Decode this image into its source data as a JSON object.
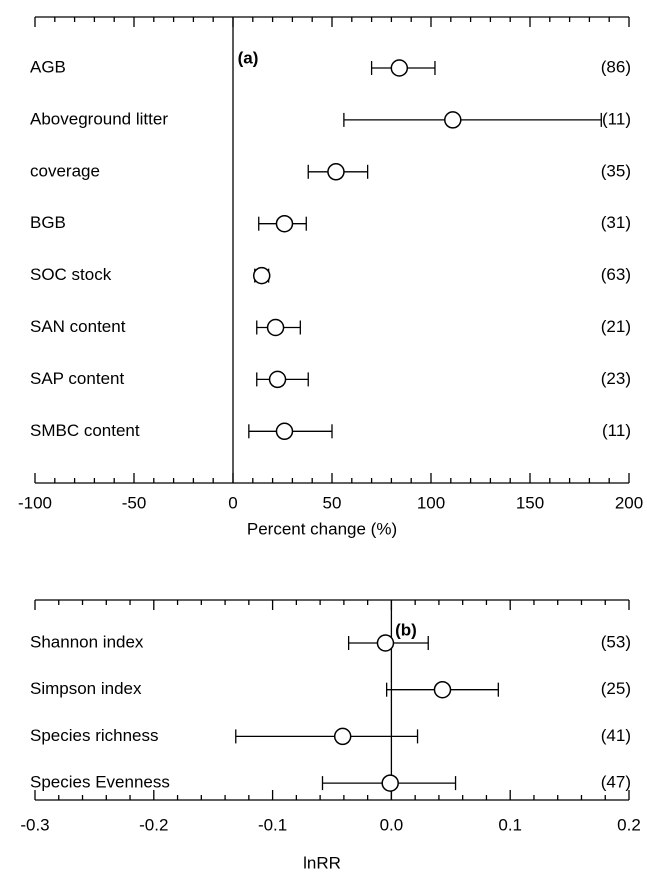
{
  "chart_data": [
    {
      "type": "forest",
      "panel_label": "(a)",
      "xlabel": "Percent change (%)",
      "xlim": [
        -100,
        200
      ],
      "xticks": [
        -100,
        -50,
        0,
        50,
        100,
        150,
        200
      ],
      "categories": [
        "AGB",
        "Aboveground litter",
        "coverage",
        "BGB",
        "SOC stock",
        "SAN content",
        "SAP content",
        "SMBC content"
      ],
      "values": [
        84,
        111,
        52,
        26,
        14.5,
        21.5,
        22.5,
        26
      ],
      "lower": [
        70,
        56,
        38,
        13,
        11,
        12,
        12,
        8
      ],
      "upper": [
        102,
        186,
        68,
        37,
        18,
        34,
        38,
        50
      ],
      "counts": [
        "(86)",
        "(11)",
        "(35)",
        "(31)",
        "(63)",
        "(21)",
        "(23)",
        "(11)"
      ]
    },
    {
      "type": "forest",
      "panel_label": "(b)",
      "xlabel": "lnRR",
      "xlim": [
        -0.3,
        0.2
      ],
      "xticks": [
        -0.3,
        -0.2,
        -0.1,
        {
          "value": 0,
          "label": "0.0"
        },
        0.1,
        0.2
      ],
      "categories": [
        "Shannon index",
        "Simpson index",
        "Species richness",
        "Species Evenness"
      ],
      "values": [
        -0.005,
        0.043,
        -0.041,
        -0.001
      ],
      "lower": [
        -0.036,
        -0.004,
        -0.131,
        -0.058
      ],
      "upper": [
        0.031,
        0.09,
        0.022,
        0.054
      ],
      "counts": [
        "(53)",
        "(25)",
        "(41)",
        "(47)"
      ]
    }
  ]
}
